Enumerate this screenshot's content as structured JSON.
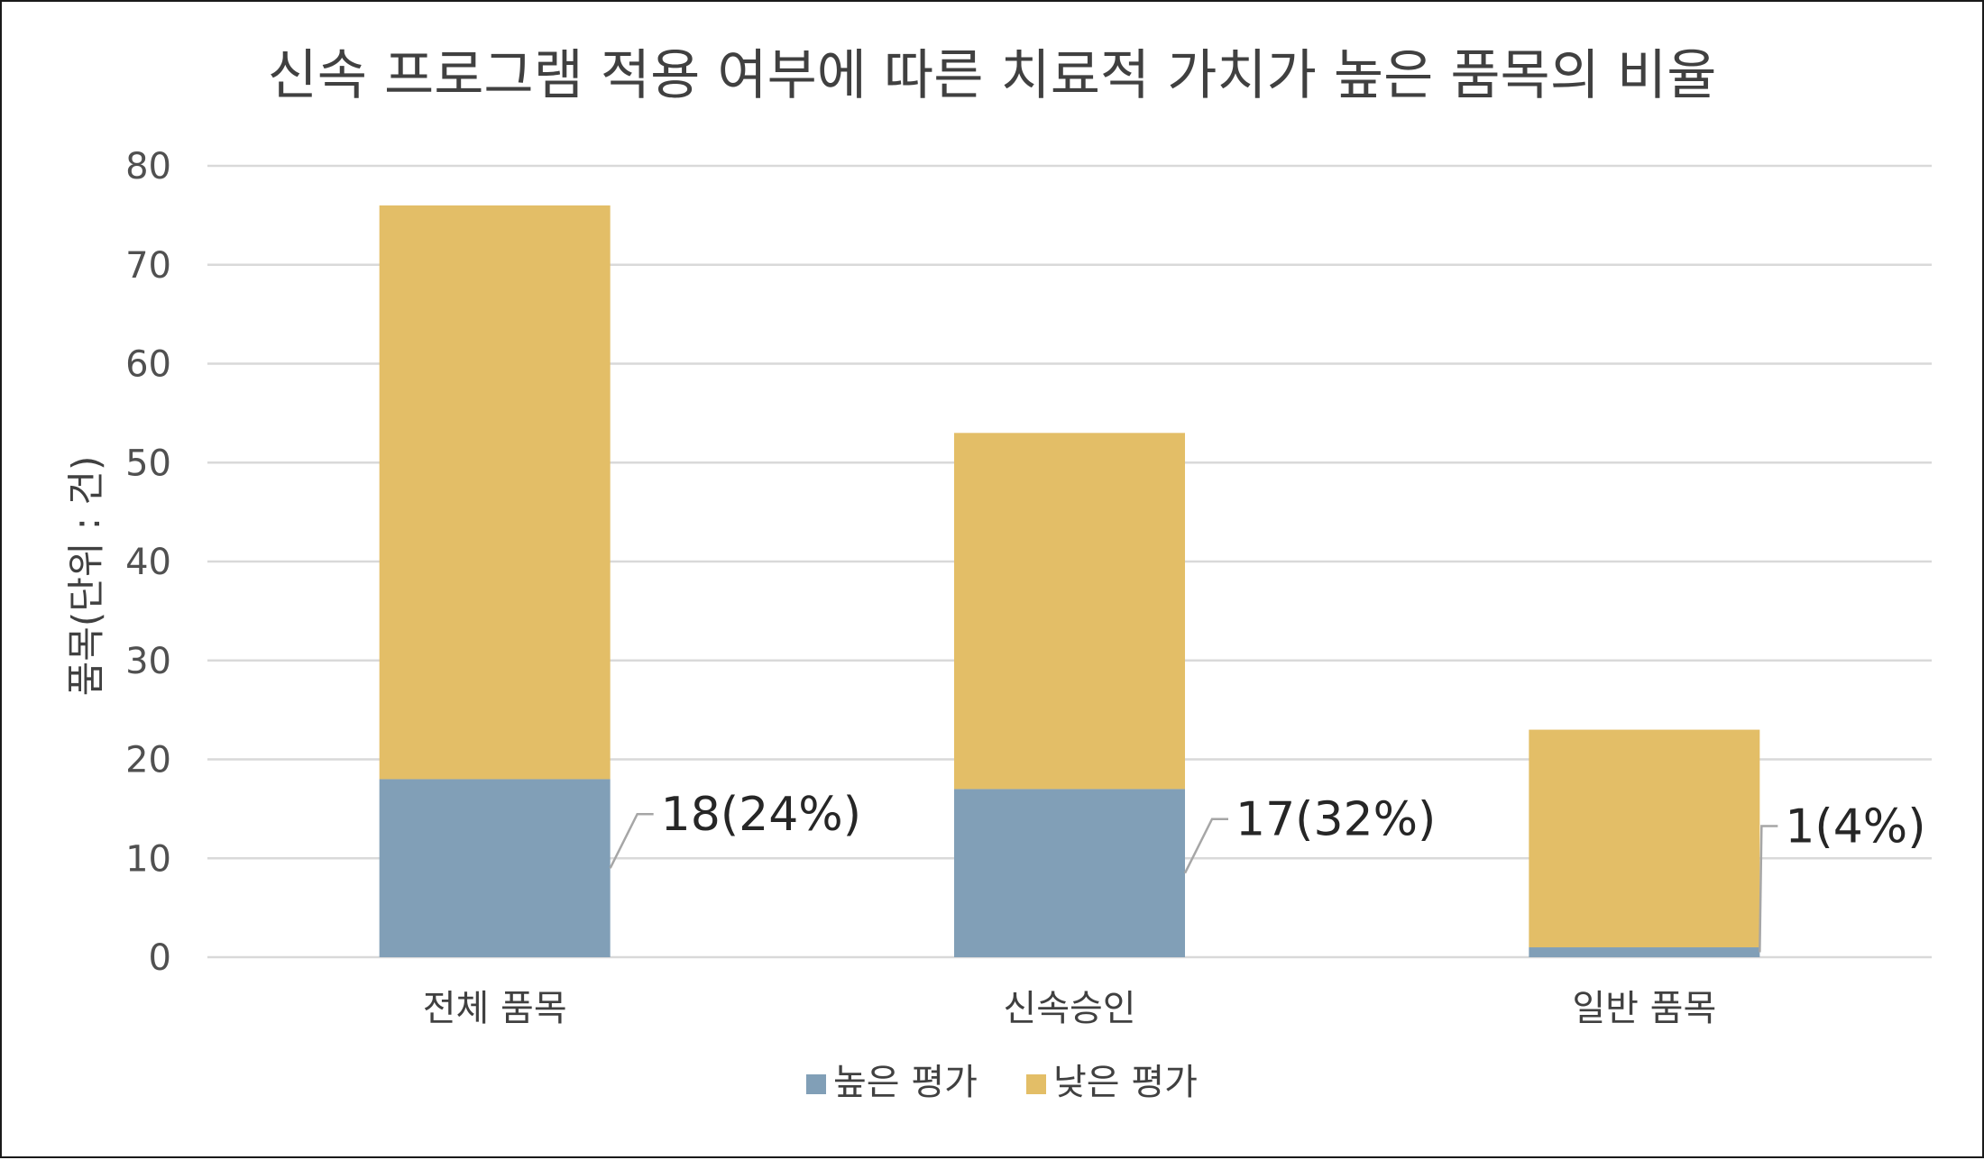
{
  "chart_data": {
    "type": "bar",
    "stacked": true,
    "title": "신속 프로그램 적용 여부에 따른 치료적 가치가 높은 품목의 비율",
    "ylabel": "품목(단위 : 건)",
    "xlabel": "",
    "categories": [
      "전체 품목",
      "신속승인",
      "일반 품목"
    ],
    "ylim": [
      0,
      80
    ],
    "yticks": [
      0,
      10,
      20,
      30,
      40,
      50,
      60,
      70,
      80
    ],
    "ytick_labels": [
      "0",
      "10",
      "20",
      "30",
      "40",
      "50",
      "60",
      "70",
      "80"
    ],
    "grid": true,
    "legend_position": "bottom",
    "series": [
      {
        "name": "높은 평가",
        "color": "#819FB7",
        "values": [
          18,
          17,
          1
        ],
        "data_labels": [
          "18(24%)",
          "17(32%)",
          "1(4%)"
        ]
      },
      {
        "name": "낮은 평가",
        "color": "#E3BE67",
        "values": [
          58,
          36,
          22
        ]
      }
    ]
  }
}
